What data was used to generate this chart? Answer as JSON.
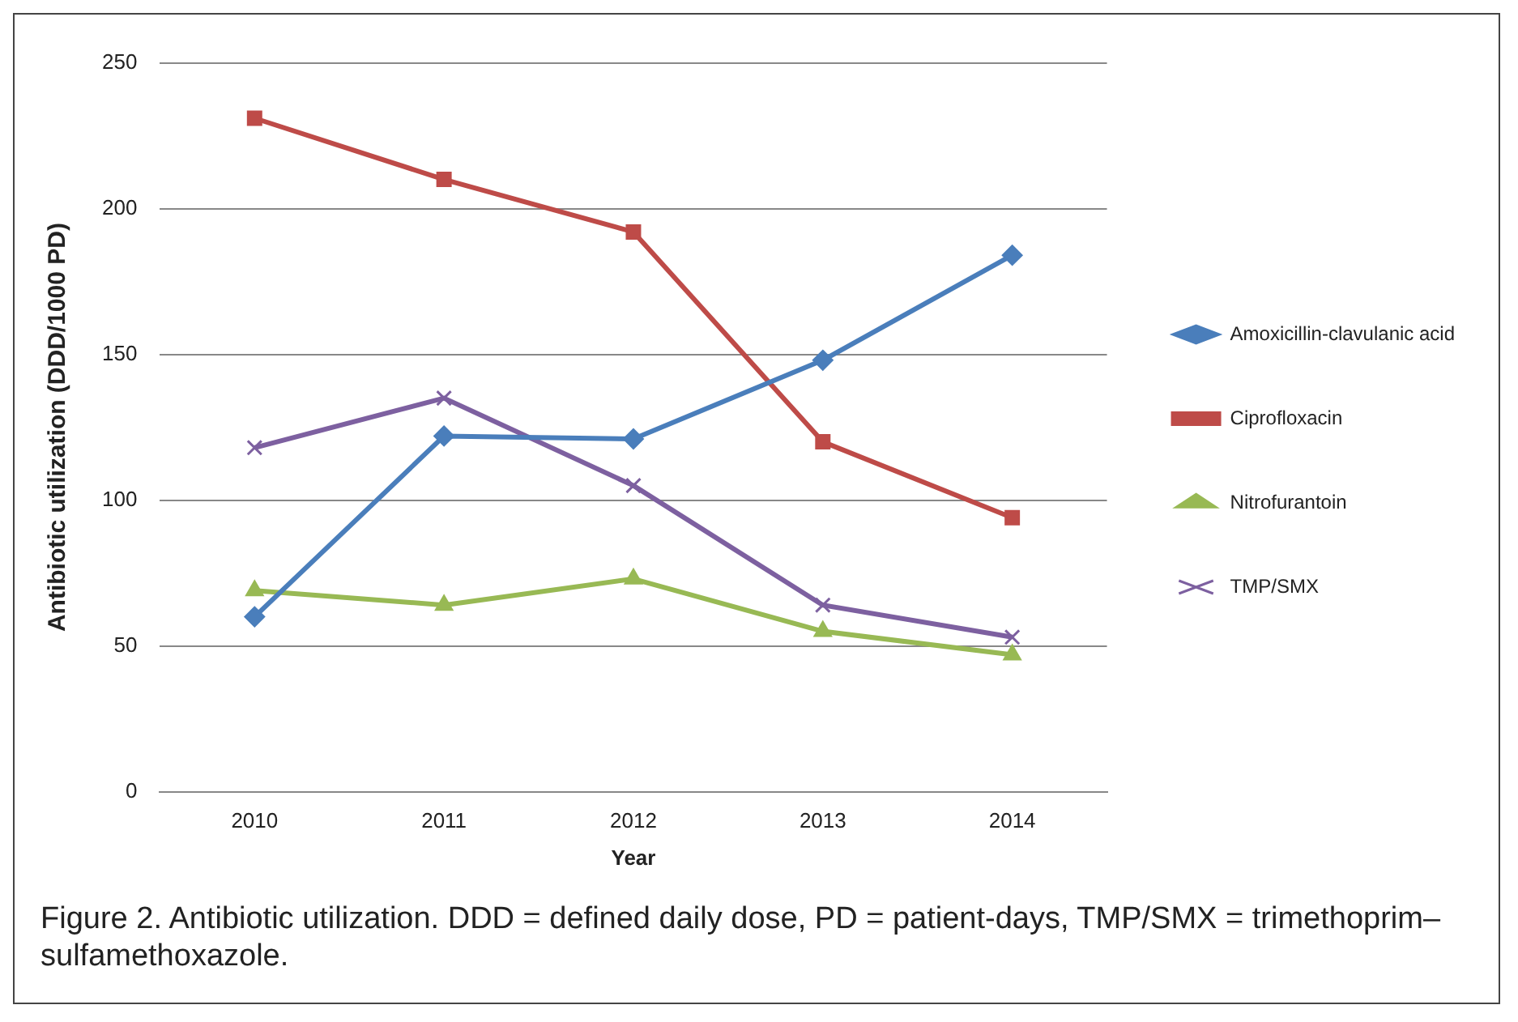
{
  "chart_data": {
    "type": "line",
    "xlabel": "Year",
    "ylabel": "Antibiotic utilization (DDD/1000 PD)",
    "categories": [
      "2010",
      "2011",
      "2012",
      "2013",
      "2014"
    ],
    "series": [
      {
        "name": "Amoxicillin-clavulanic acid",
        "color": "#4a7ebb",
        "marker": "diamond",
        "values": [
          60,
          122,
          121,
          148,
          184
        ]
      },
      {
        "name": "Ciprofloxacin",
        "color": "#be4b48",
        "marker": "square",
        "values": [
          231,
          210,
          192,
          120,
          94
        ]
      },
      {
        "name": "Nitrofurantoin",
        "color": "#98b954",
        "marker": "triangle",
        "values": [
          69,
          64,
          73,
          55,
          47
        ]
      },
      {
        "name": "TMP/SMX",
        "color": "#7d60a0",
        "marker": "cross",
        "values": [
          118,
          135,
          105,
          64,
          53
        ]
      }
    ],
    "ylim": [
      0,
      250
    ],
    "yticks": [
      0,
      50,
      100,
      150,
      200,
      250
    ],
    "grid": "y",
    "legend": "right",
    "line_style": "solid",
    "annotations": [
      "Figure 2. Antibiotic utilization. DDD = defined daily dose, PD = patient-days, TMP/SMX = trimethoprim–sulfamethoxazole."
    ]
  }
}
